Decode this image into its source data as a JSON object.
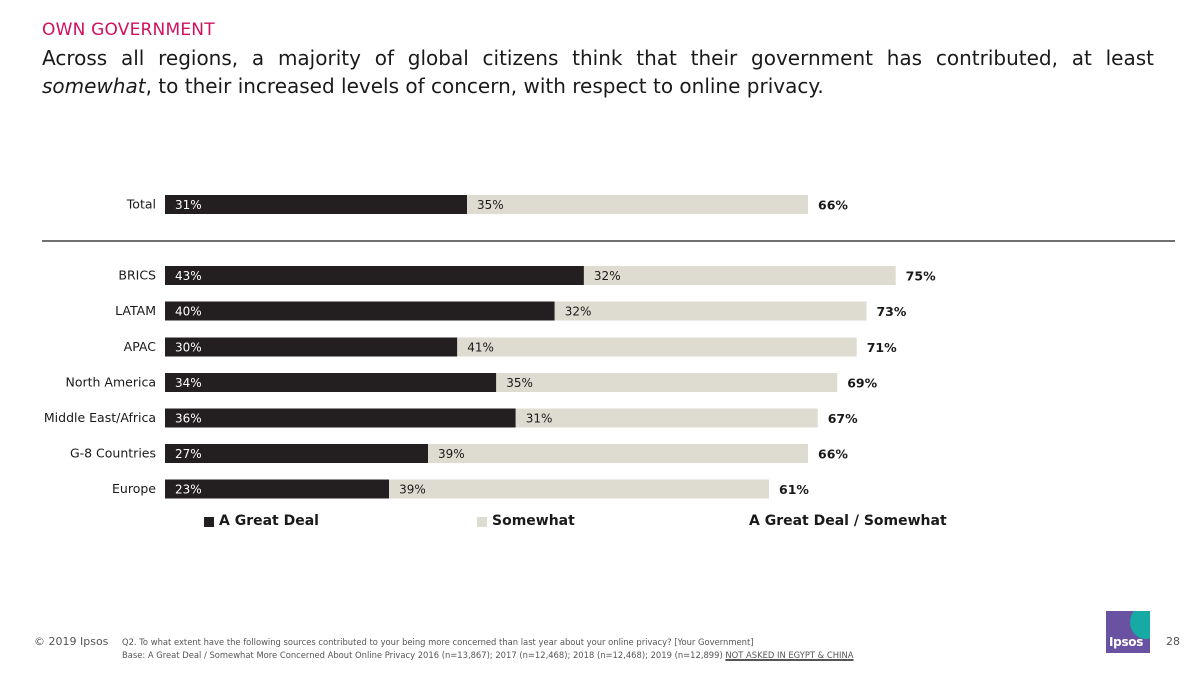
{
  "header": {
    "kicker": "OWN GOVERNMENT",
    "headline_pre": "Across all regions, a majority of global citizens think that their government has contributed, at least ",
    "headline_em": "somewhat",
    "headline_post": ", to their increased levels of concern, with respect to online privacy."
  },
  "chart_data": {
    "type": "bar",
    "orientation": "horizontal",
    "stacked": true,
    "xlim": [
      0,
      100
    ],
    "categories": [
      "Total",
      "BRICS",
      "LATAM",
      "APAC",
      "North America",
      "Middle East/Africa",
      "G-8 Countries",
      "Europe"
    ],
    "series": [
      {
        "name": "A Great Deal",
        "color": "#231f20",
        "values": [
          31,
          43,
          40,
          30,
          34,
          36,
          27,
          23
        ]
      },
      {
        "name": "Somewhat",
        "color": "#dedbd0",
        "values": [
          35,
          32,
          32,
          41,
          35,
          31,
          39,
          39
        ]
      }
    ],
    "totals": [
      66,
      75,
      73,
      71,
      69,
      67,
      66,
      61
    ],
    "total_label": "A Great Deal / Somewhat",
    "separator_after": "Total",
    "legend_position": "bottom"
  },
  "footer": {
    "copyright": "© 2019 Ipsos",
    "question": "Q2. To what extent have the following sources contributed to your being more concerned than last year about your online privacy? [Your Government]",
    "base": "Base: A Great Deal / Somewhat More Concerned About Online Privacy 2016 (n=13,867); 2017 (n=12,468); 2018 (n=12,468); 2019 (n=12,899)",
    "note": "NOT ASKED IN EGYPT & CHINA",
    "page_number": "28",
    "logo_text": "Ipsos"
  }
}
